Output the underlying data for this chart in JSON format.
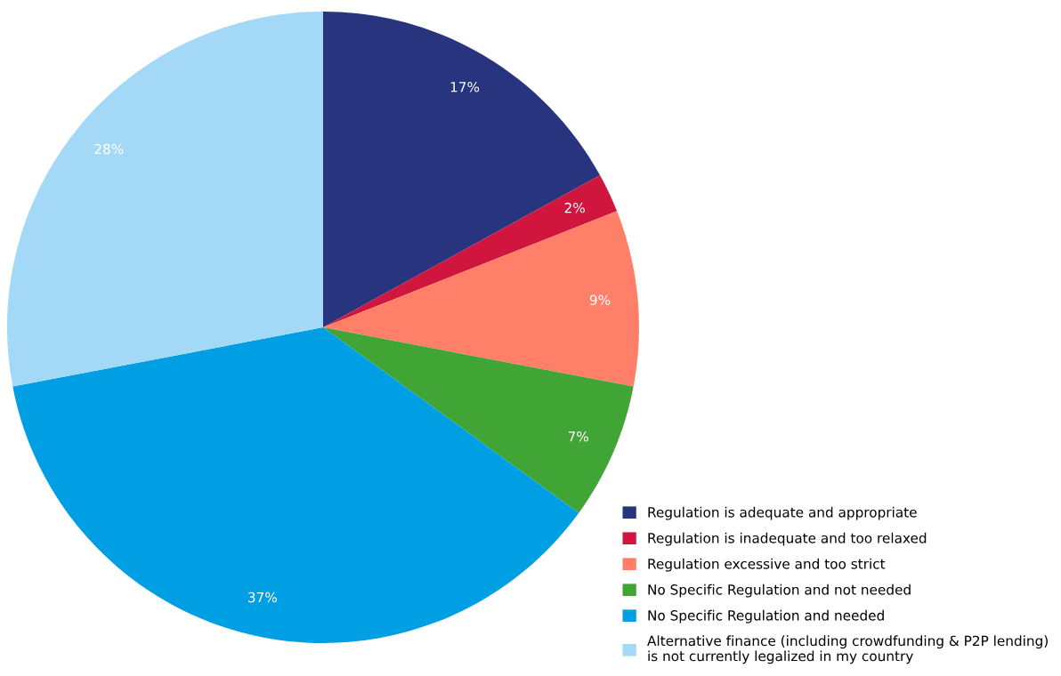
{
  "chart_data": {
    "type": "pie",
    "categories": [
      "Regulation is adequate and appropriate",
      "Regulation is inadequate and too relaxed",
      "Regulation excessive and too strict",
      "No Specific Regulation and not needed",
      "No Specific Regulation and needed",
      "Alternative finance (including crowdfunding & P2P lending)\nis not currently legalized in my country"
    ],
    "values": [
      17,
      2,
      9,
      7,
      37,
      28
    ],
    "colors": [
      "#29347f",
      "#d0163f",
      "#ff7f69",
      "#40a535",
      "#009fe3",
      "#a3d9f7"
    ],
    "value_labels": [
      "17%",
      "2%",
      "9%",
      "7%",
      "37%",
      "28%"
    ],
    "legend": "bottom right"
  }
}
